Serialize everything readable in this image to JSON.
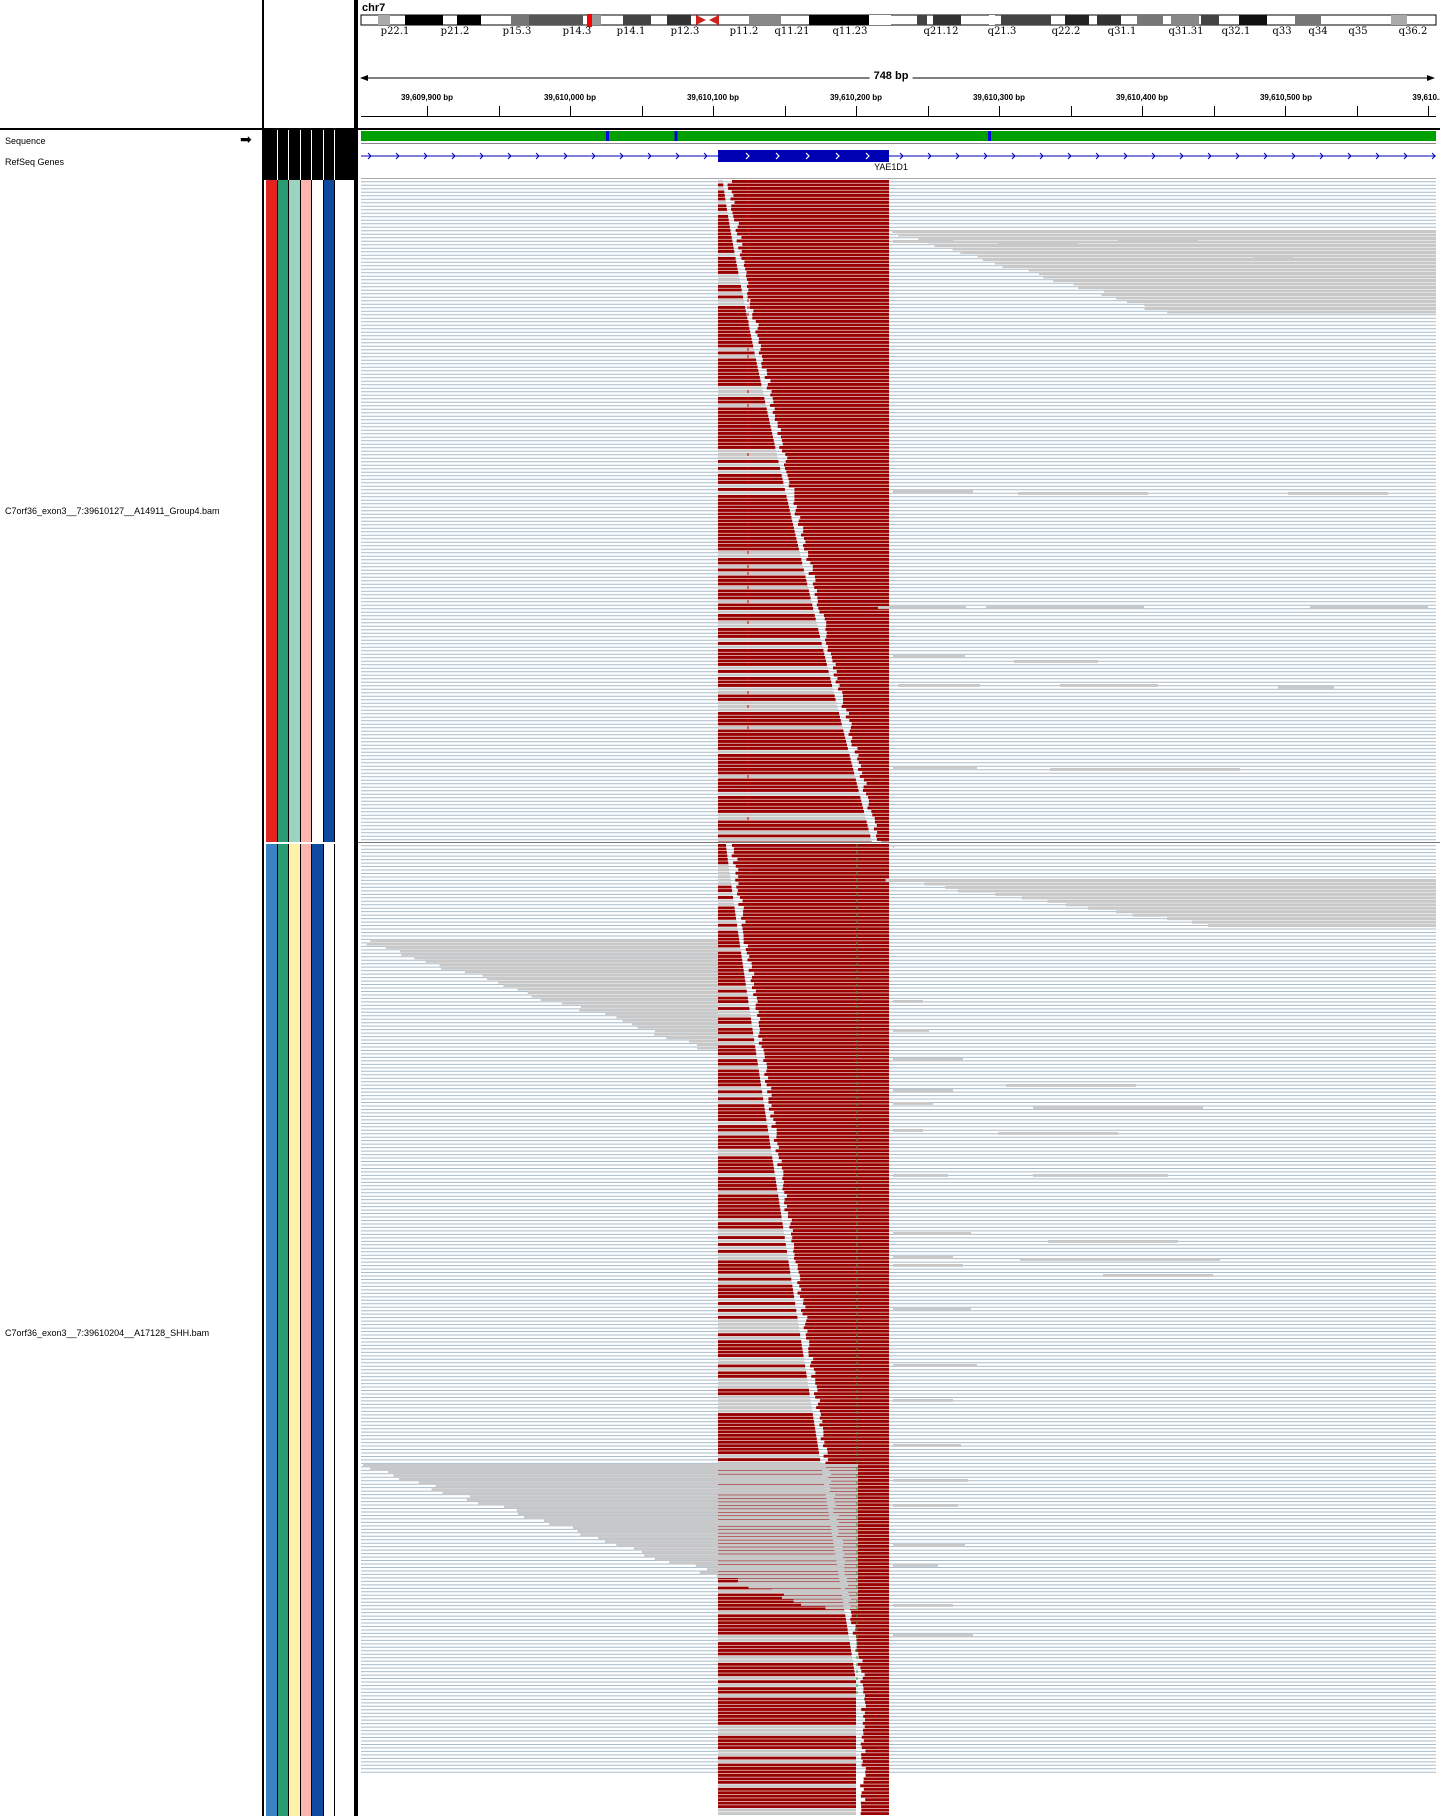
{
  "header": {
    "chromosome": "chr7",
    "bands": [
      "p22.1",
      "p21.2",
      "p15.3",
      "p14.3",
      "p14.1",
      "p12.3",
      "p11.2",
      "q11.21",
      "q11.23",
      "q21.12",
      "q21.3",
      "q22.2",
      "q31.1",
      "q31.31",
      "q32.1",
      "q33",
      "q34",
      "q35",
      "q36.2"
    ],
    "span_label": "748 bp",
    "ruler_ticks": [
      "39,609,900 bp",
      "39,610,000 bp",
      "39,610,100 bp",
      "39,610,200 bp",
      "39,610,300 bp",
      "39,610,400 bp",
      "39,610,500 bp",
      "39,610..."
    ]
  },
  "tracks": {
    "sequence": "Sequence",
    "refseq": "RefSeq Genes",
    "gene_name": "YAE1D1",
    "bam1": "C7orf36_exon3__7:39610127__A14911_Group4.bam",
    "bam2": "C7orf36_exon3__7:39610204__A17128_SHH.bam"
  },
  "colors": {
    "mismatch_red": "#990000",
    "read_gray": "#c8c8c8",
    "coverage_line": "#a8bccc",
    "gene_blue": "#0000b3",
    "attr_group1": [
      "#e52421",
      "#2a9c73",
      "#9ad4c0",
      "#fbb4ae",
      "#ffffff",
      "#0d4aa0"
    ],
    "attr_group2": [
      "#3b82c4",
      "#2a9c73",
      "#fff2a8",
      "#fbb4ae",
      "#0d4aa0",
      "#ffffff"
    ]
  }
}
